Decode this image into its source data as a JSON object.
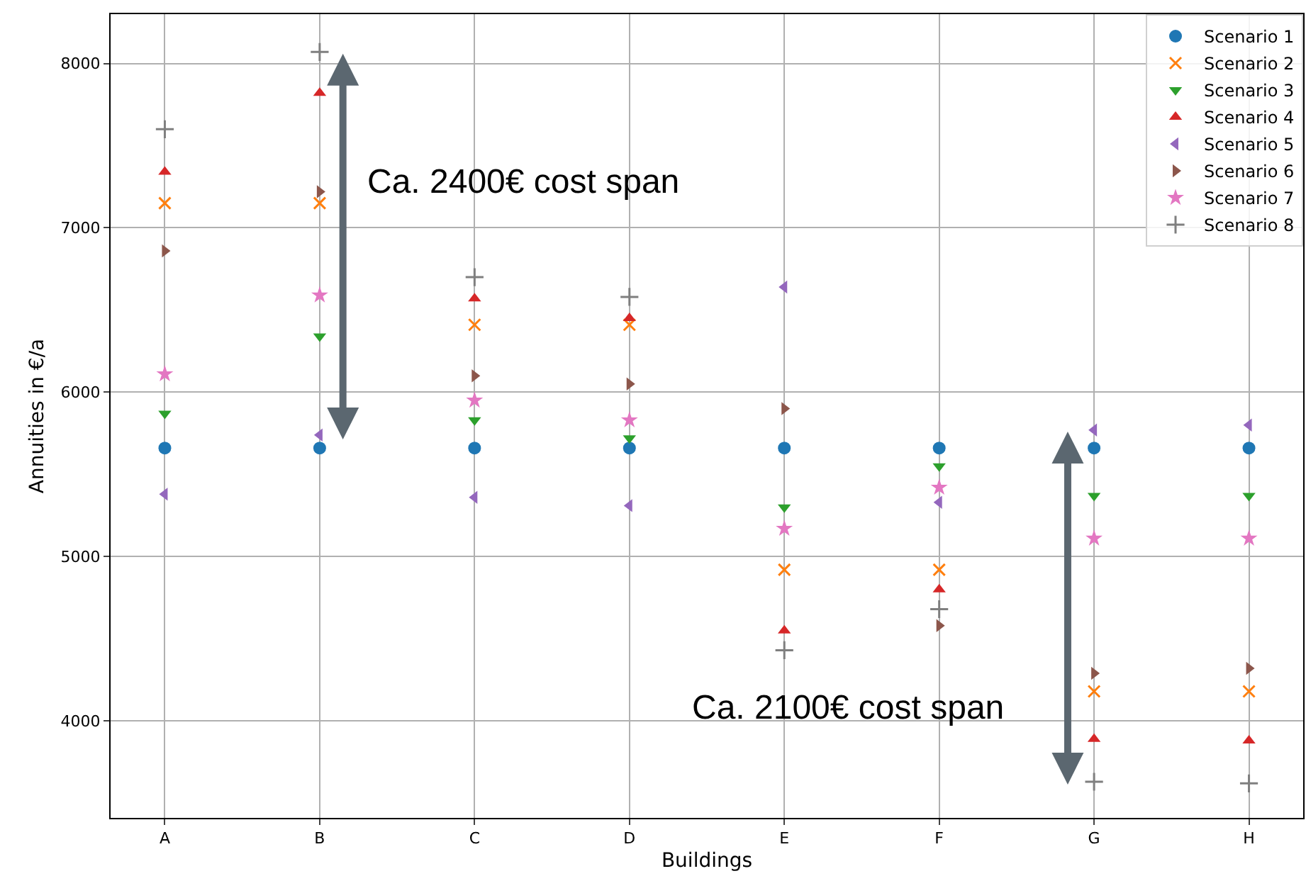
{
  "chart_data": {
    "type": "scatter",
    "xlabel": "Buildings",
    "ylabel": "Annuities in €/a",
    "categories": [
      "A",
      "B",
      "C",
      "D",
      "E",
      "F",
      "G",
      "H"
    ],
    "series": [
      {
        "name": "Scenario 1",
        "color": "#1f77b4",
        "marker": "circle",
        "values": [
          5660,
          5660,
          5660,
          5660,
          5660,
          5660,
          5660,
          5660
        ]
      },
      {
        "name": "Scenario 2",
        "color": "#ff7f0e",
        "marker": "cross",
        "values": [
          7150,
          7150,
          6410,
          6410,
          4920,
          4920,
          4180,
          4180
        ]
      },
      {
        "name": "Scenario 3",
        "color": "#2ca02c",
        "marker": "triangle-down",
        "values": [
          5870,
          6340,
          5830,
          5720,
          5300,
          5550,
          5370,
          5370
        ]
      },
      {
        "name": "Scenario 4",
        "color": "#d62728",
        "marker": "triangle-up",
        "values": [
          7340,
          7820,
          6570,
          6450,
          4550,
          4800,
          3890,
          3880
        ]
      },
      {
        "name": "Scenario 5",
        "color": "#9467bd",
        "marker": "triangle-left",
        "values": [
          5380,
          5740,
          5360,
          5310,
          6640,
          5330,
          5770,
          5800
        ]
      },
      {
        "name": "Scenario 6",
        "color": "#8c564b",
        "marker": "triangle-right",
        "values": [
          6860,
          7220,
          6100,
          6050,
          5900,
          4580,
          4290,
          4320
        ]
      },
      {
        "name": "Scenario 7",
        "color": "#e377c2",
        "marker": "star",
        "values": [
          6110,
          6590,
          5950,
          5830,
          5170,
          5420,
          5110,
          5110
        ]
      },
      {
        "name": "Scenario 8",
        "color": "#7f7f7f",
        "marker": "plus",
        "values": [
          7600,
          8070,
          6700,
          6580,
          4430,
          4680,
          3630,
          3620
        ]
      }
    ],
    "ylim": [
      3410,
      8300
    ],
    "yticks": [
      4000,
      5000,
      6000,
      7000,
      8000
    ],
    "grid": true,
    "legend": "top right",
    "annotations": [
      "Ca. 2400€ cost span",
      "Ca. 2100€ cost span"
    ]
  }
}
